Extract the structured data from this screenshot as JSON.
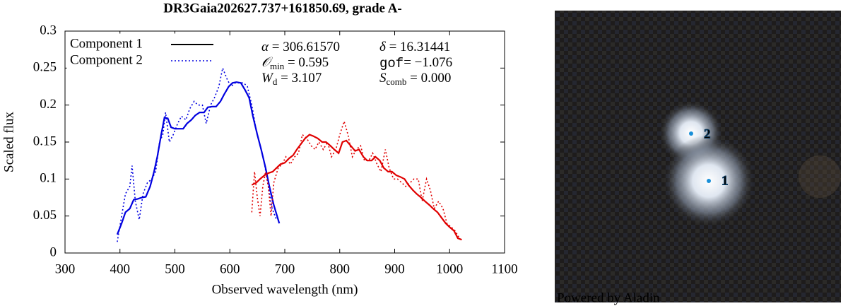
{
  "chart_data": {
    "type": "line",
    "title": "DR3Gaia202627.737+161850.69, grade A-",
    "x_label": "Observed wavelength (nm)",
    "y_label": "Scaled flux",
    "xlim": [
      300,
      1100
    ],
    "ylim": [
      0,
      0.3
    ],
    "xticks": [
      300,
      400,
      500,
      600,
      700,
      800,
      900,
      1000,
      1100
    ],
    "yticks": [
      0,
      0.05,
      0.1,
      0.15,
      0.2,
      0.25,
      0.3
    ],
    "legend": "upper left",
    "series": [
      {
        "name": "Component 1",
        "line_style": "solid",
        "legend_color": "#000000",
        "arms": [
          {
            "color": "#0000e0",
            "x": [
              395,
              403,
              410,
              418,
              425,
              432,
              440,
              447,
              455,
              462,
              468,
              475,
              481,
              487,
              493,
              500,
              507,
              515,
              522,
              530,
              537,
              545,
              553,
              560,
              568,
              575,
              583,
              590,
              598,
              605,
              612,
              620,
              628,
              635,
              642,
              650,
              657,
              665,
              672,
              680,
              690
            ],
            "values": [
              0.025,
              0.04,
              0.055,
              0.06,
              0.072,
              0.073,
              0.075,
              0.076,
              0.09,
              0.11,
              0.13,
              0.16,
              0.183,
              0.182,
              0.17,
              0.168,
              0.168,
              0.168,
              0.175,
              0.18,
              0.186,
              0.19,
              0.19,
              0.197,
              0.198,
              0.198,
              0.205,
              0.215,
              0.225,
              0.23,
              0.231,
              0.23,
              0.22,
              0.21,
              0.185,
              0.16,
              0.14,
              0.115,
              0.09,
              0.065,
              0.04
            ]
          },
          {
            "color": "#e00000",
            "x": [
              640,
              648,
              655,
              663,
              670,
              678,
              685,
              692,
              700,
              708,
              715,
              722,
              730,
              737,
              745,
              752,
              760,
              768,
              775,
              783,
              790,
              798,
              805,
              812,
              820,
              828,
              835,
              843,
              850,
              858,
              865,
              873,
              880,
              888,
              895,
              903,
              910,
              918,
              925,
              933,
              940,
              948,
              955,
              963,
              970,
              978,
              985,
              993,
              1000,
              1008,
              1015,
              1022
            ],
            "values": [
              0.092,
              0.095,
              0.1,
              0.105,
              0.108,
              0.11,
              0.115,
              0.12,
              0.122,
              0.128,
              0.132,
              0.14,
              0.148,
              0.155,
              0.16,
              0.158,
              0.155,
              0.15,
              0.15,
              0.145,
              0.14,
              0.135,
              0.15,
              0.152,
              0.145,
              0.138,
              0.14,
              0.13,
              0.125,
              0.125,
              0.13,
              0.125,
              0.115,
              0.11,
              0.11,
              0.105,
              0.103,
              0.1,
              0.092,
              0.085,
              0.08,
              0.075,
              0.07,
              0.065,
              0.06,
              0.055,
              0.048,
              0.04,
              0.035,
              0.03,
              0.02,
              0.018
            ]
          }
        ]
      },
      {
        "name": "Component 2",
        "line_style": "dotted",
        "legend_color": "#0000e0",
        "arms": [
          {
            "color": "#0000e0",
            "x": [
              395,
              403,
              410,
              418,
              422,
              428,
              435,
              442,
              450,
              458,
              465,
              472,
              478,
              483,
              490,
              497,
              505,
              512,
              520,
              527,
              535,
              542,
              550,
              557,
              565,
              572,
              580,
              587,
              595,
              602,
              610,
              618,
              625,
              632,
              640,
              647,
              655,
              662,
              670,
              677,
              685
            ],
            "values": [
              0.015,
              0.05,
              0.08,
              0.09,
              0.118,
              0.07,
              0.045,
              0.08,
              0.095,
              0.1,
              0.11,
              0.15,
              0.16,
              0.19,
              0.15,
              0.16,
              0.175,
              0.185,
              0.18,
              0.195,
              0.205,
              0.2,
              0.2,
              0.175,
              0.2,
              0.21,
              0.225,
              0.25,
              0.235,
              0.225,
              0.23,
              0.23,
              0.23,
              0.225,
              0.2,
              0.17,
              0.145,
              0.125,
              0.09,
              0.06,
              0.045
            ]
          },
          {
            "color": "#e00000",
            "x": [
              640,
              645,
              650,
              655,
              660,
              665,
              670,
              675,
              680,
              688,
              695,
              702,
              710,
              718,
              725,
              732,
              740,
              748,
              755,
              762,
              770,
              778,
              785,
              793,
              800,
              808,
              815,
              823,
              830,
              838,
              845,
              853,
              860,
              868,
              875,
              883,
              890,
              898,
              905,
              913,
              920,
              928,
              935,
              943,
              950,
              958,
              965,
              972,
              980,
              988,
              995,
              1003,
              1010,
              1018
            ],
            "values": [
              0.055,
              0.11,
              0.075,
              0.05,
              0.09,
              0.11,
              0.09,
              0.05,
              0.095,
              0.115,
              0.12,
              0.13,
              0.12,
              0.13,
              0.135,
              0.16,
              0.155,
              0.145,
              0.14,
              0.15,
              0.14,
              0.15,
              0.13,
              0.14,
              0.16,
              0.178,
              0.16,
              0.13,
              0.14,
              0.145,
              0.125,
              0.125,
              0.135,
              0.12,
              0.11,
              0.14,
              0.115,
              0.1,
              0.1,
              0.095,
              0.09,
              0.095,
              0.1,
              0.1,
              0.07,
              0.1,
              0.085,
              0.06,
              0.07,
              0.06,
              0.04,
              0.035,
              0.03,
              0.02
            ]
          }
        ]
      }
    ],
    "annotations": [
      {
        "symbol": "α",
        "text": " = 306.61570"
      },
      {
        "symbol": "δ",
        "text": " = 16.31441"
      },
      {
        "symbol": "𝒪",
        "sub": "min",
        "text": " = 0.595"
      },
      {
        "symbol": "gof",
        "text": "= −1.076",
        "font": "mono"
      },
      {
        "symbol": "W",
        "sub": "d",
        "text": " = 3.107"
      },
      {
        "symbol": "S",
        "sub": "comb",
        "text": " = 0.000"
      }
    ]
  },
  "image": {
    "labels": [
      "1",
      "2"
    ],
    "credit": "Powered by Aladin"
  }
}
